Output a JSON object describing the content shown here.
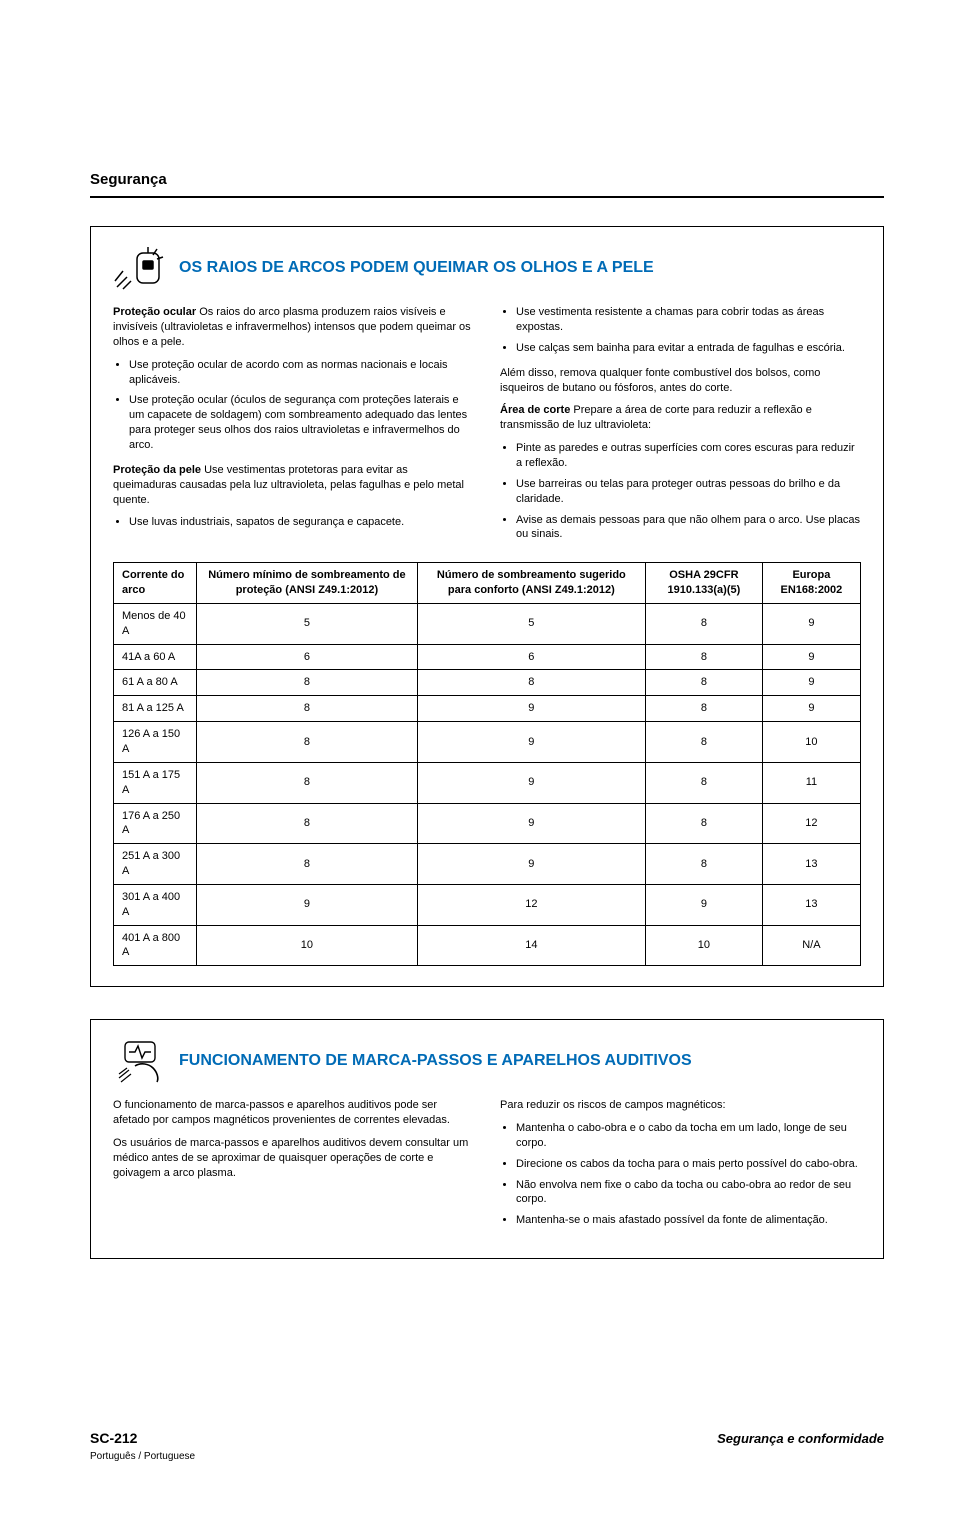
{
  "page": {
    "section_header": "Segurança",
    "accent_color": "#006bb6",
    "footer": {
      "code": "SC-212",
      "lang": "Português / Portuguese",
      "right": "Segurança e conformidade"
    }
  },
  "block1": {
    "title": "OS RAIOS DE ARCOS PODEM QUEIMAR OS OLHOS E A PELE",
    "left": {
      "p1_lead": "Proteção ocular",
      "p1_text": "  Os raios do arco plasma produzem raios visíveis e invisíveis (ultravioletas e infravermelhos) intensos que podem queimar os olhos e a pele.",
      "l1": "Use proteção ocular de acordo com as normas nacionais e locais aplicáveis.",
      "l2": "Use proteção ocular (óculos de segurança com proteções laterais e um capacete de soldagem) com sombreamento adequado das lentes para proteger seus olhos dos raios ultravioletas e infravermelhos do arco.",
      "p2_lead": "Proteção da pele",
      "p2_text": "  Use vestimentas protetoras para evitar as queimaduras causadas pela luz ultravioleta, pelas fagulhas e pelo metal quente.",
      "l3": "Use luvas industriais, sapatos de segurança e capacete."
    },
    "right": {
      "l1": "Use vestimenta resistente a chamas para cobrir todas as áreas expostas.",
      "l2": "Use calças sem bainha para evitar a entrada de fagulhas e escória.",
      "p1": "Além disso, remova qualquer fonte combustível dos bolsos, como isqueiros de butano ou fósforos, antes do corte.",
      "p2_lead": "Área de corte",
      "p2_text": "  Prepare a área de corte para reduzir a reflexão e transmissão de luz ultravioleta:",
      "l3": "Pinte as paredes e outras superfícies com cores escuras para reduzir a reflexão.",
      "l4": "Use barreiras ou telas para proteger outras pessoas do brilho e da claridade.",
      "l5": "Avise as demais pessoas para que não olhem para o arco. Use placas ou sinais."
    },
    "table": {
      "headers": {
        "c0": "Corrente do arco",
        "c1": "Número mínimo de sombreamento de proteção (ANSI Z49.1:2012)",
        "c2": "Número de sombreamento sugerido para conforto (ANSI Z49.1:2012)",
        "c3": "OSHA 29CFR 1910.133(a)(5)",
        "c4": "Europa EN168:2002"
      },
      "rows": [
        {
          "c0": "Menos de 40 A",
          "c1": "5",
          "c2": "5",
          "c3": "8",
          "c4": "9"
        },
        {
          "c0": "41A a 60 A",
          "c1": "6",
          "c2": "6",
          "c3": "8",
          "c4": "9"
        },
        {
          "c0": "61 A a 80 A",
          "c1": "8",
          "c2": "8",
          "c3": "8",
          "c4": "9"
        },
        {
          "c0": "81 A a 125 A",
          "c1": "8",
          "c2": "9",
          "c3": "8",
          "c4": "9"
        },
        {
          "c0": "126 A a 150 A",
          "c1": "8",
          "c2": "9",
          "c3": "8",
          "c4": "10"
        },
        {
          "c0": "151 A a 175 A",
          "c1": "8",
          "c2": "9",
          "c3": "8",
          "c4": "11"
        },
        {
          "c0": "176 A a 250 A",
          "c1": "8",
          "c2": "9",
          "c3": "8",
          "c4": "12"
        },
        {
          "c0": "251 A a 300 A",
          "c1": "8",
          "c2": "9",
          "c3": "8",
          "c4": "13"
        },
        {
          "c0": "301 A a 400 A",
          "c1": "9",
          "c2": "12",
          "c3": "9",
          "c4": "13"
        },
        {
          "c0": "401 A a 800 A",
          "c1": "10",
          "c2": "14",
          "c3": "10",
          "c4": "N/A"
        }
      ]
    }
  },
  "block2": {
    "title": "FUNCIONAMENTO DE MARCA-PASSOS E APARELHOS AUDITIVOS",
    "left": {
      "p1": "O funcionamento de marca-passos e aparelhos auditivos pode ser afetado por campos magnéticos provenientes de correntes elevadas.",
      "p2": "Os usuários de marca-passos e aparelhos auditivos devem consultar um médico antes de se aproximar de quaisquer operações de corte e goivagem a arco plasma."
    },
    "right": {
      "p1": "Para reduzir os riscos de campos magnéticos:",
      "l1": "Mantenha o cabo-obra e o cabo da tocha em um lado, longe de seu corpo.",
      "l2": "Direcione os cabos da tocha para o mais perto possível do cabo-obra.",
      "l3": "Não envolva nem fixe o cabo da tocha ou cabo-obra ao redor de seu corpo.",
      "l4": "Mantenha-se o mais afastado possível da fonte de alimentação."
    }
  }
}
